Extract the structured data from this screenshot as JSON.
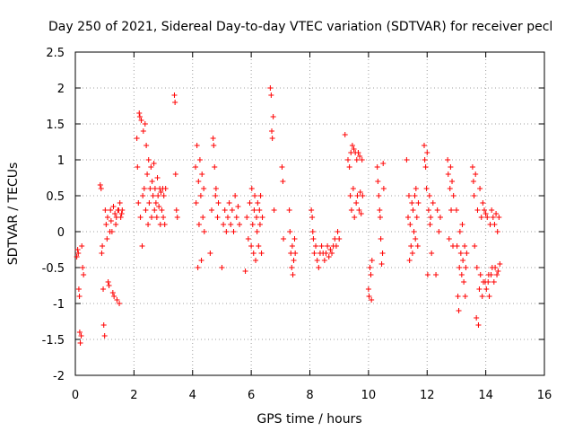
{
  "chart_data": {
    "type": "scatter",
    "title": "Day 250 of 2021, Sidereal Day-to-day VTEC variation (SDTVAR) for receiver pecl",
    "xlabel": "GPS time / hours",
    "ylabel": "SDTVAR / TECUs",
    "xlim": [
      0,
      16
    ],
    "ylim": [
      -2,
      2.5
    ],
    "xticks": [
      0,
      2,
      4,
      6,
      8,
      10,
      12,
      14,
      16
    ],
    "xtick_labels": [
      "0",
      "2",
      "4",
      "6",
      "8",
      "10",
      "12",
      "14",
      "16"
    ],
    "yticks": [
      -2,
      -1.5,
      -1,
      -0.5,
      0,
      0.5,
      1,
      1.5,
      2,
      2.5
    ],
    "ytick_labels": [
      "-2",
      "-1.5",
      "-1",
      "-0.5",
      "0",
      "0.5",
      "1",
      "1.5",
      "2",
      "2.5"
    ],
    "grid": true,
    "marker": "+",
    "marker_color": "#ff0000",
    "series": [
      {
        "name": "SDTVAR",
        "points": [
          [
            0.05,
            -0.35
          ],
          [
            0.08,
            -0.25
          ],
          [
            0.1,
            -0.3
          ],
          [
            0.12,
            -0.8
          ],
          [
            0.14,
            -0.9
          ],
          [
            0.15,
            -1.4
          ],
          [
            0.17,
            -1.55
          ],
          [
            0.2,
            -1.45
          ],
          [
            0.22,
            -0.2
          ],
          [
            0.25,
            -0.5
          ],
          [
            0.28,
            -0.6
          ],
          [
            0.85,
            0.65
          ],
          [
            0.88,
            0.6
          ],
          [
            0.9,
            -0.3
          ],
          [
            0.92,
            -0.2
          ],
          [
            0.95,
            -0.8
          ],
          [
            0.97,
            -1.3
          ],
          [
            1.0,
            -1.45
          ],
          [
            1.02,
            0.3
          ],
          [
            1.05,
            0.1
          ],
          [
            1.08,
            -0.1
          ],
          [
            1.1,
            0.2
          ],
          [
            1.12,
            -0.7
          ],
          [
            1.15,
            -0.75
          ],
          [
            1.18,
            0.0
          ],
          [
            1.2,
            0.3
          ],
          [
            1.22,
            0.15
          ],
          [
            1.25,
            0.0
          ],
          [
            1.28,
            -0.85
          ],
          [
            1.3,
            0.35
          ],
          [
            1.32,
            -0.9
          ],
          [
            1.35,
            0.25
          ],
          [
            1.38,
            0.1
          ],
          [
            1.4,
            0.2
          ],
          [
            1.42,
            -0.95
          ],
          [
            1.45,
            0.3
          ],
          [
            1.48,
            0.3
          ],
          [
            1.5,
            -1.0
          ],
          [
            1.52,
            0.4
          ],
          [
            1.55,
            0.2
          ],
          [
            1.58,
            0.25
          ],
          [
            1.6,
            0.3
          ],
          [
            2.1,
            1.3
          ],
          [
            2.12,
            0.9
          ],
          [
            2.15,
            0.4
          ],
          [
            2.18,
            1.65
          ],
          [
            2.2,
            1.6
          ],
          [
            2.22,
            0.2
          ],
          [
            2.25,
            1.55
          ],
          [
            2.28,
            -0.2
          ],
          [
            2.3,
            0.5
          ],
          [
            2.32,
            1.4
          ],
          [
            2.35,
            0.6
          ],
          [
            2.38,
            1.5
          ],
          [
            2.4,
            0.3
          ],
          [
            2.42,
            1.2
          ],
          [
            2.45,
            0.8
          ],
          [
            2.48,
            0.1
          ],
          [
            2.5,
            1.0
          ],
          [
            2.52,
            0.4
          ],
          [
            2.55,
            0.6
          ],
          [
            2.58,
            0.9
          ],
          [
            2.6,
            0.2
          ],
          [
            2.62,
            0.7
          ],
          [
            2.65,
            0.5
          ],
          [
            2.68,
            0.95
          ],
          [
            2.7,
            0.3
          ],
          [
            2.72,
            0.6
          ],
          [
            2.75,
            0.4
          ],
          [
            2.78,
            0.2
          ],
          [
            2.8,
            0.75
          ],
          [
            2.82,
            0.5
          ],
          [
            2.85,
            0.35
          ],
          [
            2.88,
            0.6
          ],
          [
            2.9,
            0.1
          ],
          [
            2.92,
            0.55
          ],
          [
            2.95,
            0.3
          ],
          [
            2.98,
            0.6
          ],
          [
            3.0,
            0.2
          ],
          [
            3.02,
            0.5
          ],
          [
            3.05,
            0.1
          ],
          [
            3.08,
            0.6
          ],
          [
            3.38,
            1.9
          ],
          [
            3.4,
            1.8
          ],
          [
            3.42,
            0.8
          ],
          [
            3.45,
            0.3
          ],
          [
            3.48,
            0.2
          ],
          [
            4.1,
            0.9
          ],
          [
            4.12,
            0.4
          ],
          [
            4.15,
            1.2
          ],
          [
            4.18,
            -0.5
          ],
          [
            4.2,
            0.7
          ],
          [
            4.22,
            0.1
          ],
          [
            4.25,
            1.0
          ],
          [
            4.28,
            0.5
          ],
          [
            4.3,
            -0.4
          ],
          [
            4.32,
            0.8
          ],
          [
            4.35,
            0.2
          ],
          [
            4.38,
            0.6
          ],
          [
            4.4,
            0.0
          ],
          [
            4.6,
            -0.3
          ],
          [
            4.65,
            0.3
          ],
          [
            4.7,
            1.3
          ],
          [
            4.72,
            1.2
          ],
          [
            4.75,
            0.9
          ],
          [
            4.78,
            0.5
          ],
          [
            4.8,
            0.6
          ],
          [
            4.85,
            0.2
          ],
          [
            4.88,
            0.4
          ],
          [
            5.0,
            -0.5
          ],
          [
            5.05,
            0.1
          ],
          [
            5.1,
            0.3
          ],
          [
            5.15,
            0.0
          ],
          [
            5.2,
            0.2
          ],
          [
            5.25,
            0.4
          ],
          [
            5.3,
            0.1
          ],
          [
            5.35,
            0.3
          ],
          [
            5.4,
            0.0
          ],
          [
            5.45,
            0.5
          ],
          [
            5.5,
            0.2
          ],
          [
            5.55,
            0.35
          ],
          [
            5.6,
            0.1
          ],
          [
            5.8,
            -0.55
          ],
          [
            5.85,
            0.2
          ],
          [
            5.9,
            -0.1
          ],
          [
            5.95,
            0.4
          ],
          [
            6.0,
            -0.2
          ],
          [
            6.02,
            0.6
          ],
          [
            6.05,
            0.1
          ],
          [
            6.08,
            -0.3
          ],
          [
            6.1,
            0.3
          ],
          [
            6.12,
            0.5
          ],
          [
            6.15,
            -0.4
          ],
          [
            6.18,
            0.2
          ],
          [
            6.2,
            0.0
          ],
          [
            6.22,
            0.4
          ],
          [
            6.25,
            -0.2
          ],
          [
            6.28,
            0.3
          ],
          [
            6.3,
            0.1
          ],
          [
            6.32,
            0.5
          ],
          [
            6.35,
            -0.3
          ],
          [
            6.38,
            0.2
          ],
          [
            6.65,
            2.0
          ],
          [
            6.68,
            1.9
          ],
          [
            6.7,
            1.4
          ],
          [
            6.72,
            1.3
          ],
          [
            6.75,
            1.6
          ],
          [
            6.78,
            0.3
          ],
          [
            7.05,
            0.9
          ],
          [
            7.08,
            0.7
          ],
          [
            7.1,
            -0.1
          ],
          [
            7.3,
            0.3
          ],
          [
            7.32,
            0.0
          ],
          [
            7.35,
            -0.3
          ],
          [
            7.38,
            -0.5
          ],
          [
            7.4,
            -0.2
          ],
          [
            7.42,
            -0.6
          ],
          [
            7.45,
            -0.4
          ],
          [
            7.48,
            -0.1
          ],
          [
            7.5,
            -0.3
          ],
          [
            8.05,
            0.3
          ],
          [
            8.08,
            0.2
          ],
          [
            8.1,
            0.0
          ],
          [
            8.12,
            -0.1
          ],
          [
            8.15,
            -0.3
          ],
          [
            8.2,
            -0.2
          ],
          [
            8.25,
            -0.4
          ],
          [
            8.3,
            -0.5
          ],
          [
            8.35,
            -0.3
          ],
          [
            8.4,
            -0.2
          ],
          [
            8.45,
            -0.3
          ],
          [
            8.5,
            -0.4
          ],
          [
            8.55,
            -0.3
          ],
          [
            8.6,
            -0.2
          ],
          [
            8.65,
            -0.35
          ],
          [
            8.7,
            -0.25
          ],
          [
            8.75,
            -0.3
          ],
          [
            8.8,
            -0.2
          ],
          [
            8.85,
            -0.1
          ],
          [
            8.9,
            -0.2
          ],
          [
            8.95,
            0.0
          ],
          [
            9.0,
            -0.1
          ],
          [
            9.2,
            1.35
          ],
          [
            9.3,
            1.0
          ],
          [
            9.35,
            0.9
          ],
          [
            9.38,
            0.5
          ],
          [
            9.4,
            1.1
          ],
          [
            9.42,
            0.3
          ],
          [
            9.45,
            1.2
          ],
          [
            9.48,
            0.6
          ],
          [
            9.5,
            1.15
          ],
          [
            9.52,
            0.2
          ],
          [
            9.55,
            1.1
          ],
          [
            9.58,
            0.4
          ],
          [
            9.6,
            1.0
          ],
          [
            9.62,
            0.5
          ],
          [
            9.65,
            1.1
          ],
          [
            9.68,
            0.3
          ],
          [
            9.7,
            1.05
          ],
          [
            9.72,
            0.55
          ],
          [
            9.75,
            0.25
          ],
          [
            9.78,
            1.0
          ],
          [
            9.8,
            0.5
          ],
          [
            10.0,
            -0.8
          ],
          [
            10.02,
            -0.9
          ],
          [
            10.05,
            -0.5
          ],
          [
            10.08,
            -0.6
          ],
          [
            10.1,
            -0.95
          ],
          [
            10.12,
            -0.4
          ],
          [
            10.3,
            0.9
          ],
          [
            10.32,
            0.7
          ],
          [
            10.35,
            0.5
          ],
          [
            10.38,
            0.3
          ],
          [
            10.4,
            0.2
          ],
          [
            10.42,
            -0.1
          ],
          [
            10.45,
            -0.45
          ],
          [
            10.48,
            -0.3
          ],
          [
            10.5,
            0.95
          ],
          [
            10.52,
            0.6
          ],
          [
            11.3,
            1.0
          ],
          [
            11.35,
            0.2
          ],
          [
            11.38,
            0.5
          ],
          [
            11.4,
            -0.4
          ],
          [
            11.42,
            0.1
          ],
          [
            11.45,
            -0.2
          ],
          [
            11.48,
            0.4
          ],
          [
            11.5,
            -0.3
          ],
          [
            11.52,
            0.3
          ],
          [
            11.55,
            0.0
          ],
          [
            11.58,
            0.5
          ],
          [
            11.6,
            -0.1
          ],
          [
            11.62,
            0.6
          ],
          [
            11.65,
            0.2
          ],
          [
            11.68,
            -0.2
          ],
          [
            11.7,
            0.4
          ],
          [
            11.9,
            1.2
          ],
          [
            11.92,
            1.0
          ],
          [
            11.95,
            0.9
          ],
          [
            11.98,
            0.6
          ],
          [
            12.0,
            1.1
          ],
          [
            12.02,
            -0.6
          ],
          [
            12.05,
            0.3
          ],
          [
            12.08,
            0.5
          ],
          [
            12.1,
            0.1
          ],
          [
            12.12,
            0.2
          ],
          [
            12.15,
            -0.3
          ],
          [
            12.2,
            0.4
          ],
          [
            12.3,
            -0.6
          ],
          [
            12.35,
            0.3
          ],
          [
            12.4,
            0.0
          ],
          [
            12.45,
            0.2
          ],
          [
            12.7,
            1.0
          ],
          [
            12.72,
            0.8
          ],
          [
            12.75,
            -0.1
          ],
          [
            12.78,
            0.6
          ],
          [
            12.8,
            0.9
          ],
          [
            12.82,
            0.3
          ],
          [
            12.85,
            0.7
          ],
          [
            12.88,
            -0.2
          ],
          [
            12.9,
            0.5
          ],
          [
            13.0,
            0.3
          ],
          [
            13.02,
            -0.2
          ],
          [
            13.05,
            -0.9
          ],
          [
            13.08,
            -1.1
          ],
          [
            13.1,
            -0.5
          ],
          [
            13.12,
            0.0
          ],
          [
            13.15,
            -0.3
          ],
          [
            13.18,
            -0.6
          ],
          [
            13.2,
            0.1
          ],
          [
            13.22,
            -0.4
          ],
          [
            13.25,
            -0.7
          ],
          [
            13.28,
            -0.2
          ],
          [
            13.3,
            -0.9
          ],
          [
            13.32,
            -0.5
          ],
          [
            13.35,
            -0.3
          ],
          [
            13.55,
            0.9
          ],
          [
            13.58,
            0.7
          ],
          [
            13.6,
            0.5
          ],
          [
            13.62,
            -0.2
          ],
          [
            13.65,
            0.8
          ],
          [
            13.68,
            -1.2
          ],
          [
            13.7,
            -0.5
          ],
          [
            13.72,
            0.3
          ],
          [
            13.75,
            -1.3
          ],
          [
            13.78,
            -0.8
          ],
          [
            13.8,
            0.6
          ],
          [
            13.82,
            -0.6
          ],
          [
            13.85,
            0.2
          ],
          [
            13.88,
            -0.9
          ],
          [
            13.9,
            0.4
          ],
          [
            13.92,
            -0.7
          ],
          [
            13.95,
            0.3
          ],
          [
            13.98,
            -0.7
          ],
          [
            14.0,
            0.25
          ],
          [
            14.02,
            -0.8
          ],
          [
            14.05,
            0.2
          ],
          [
            14.08,
            -0.7
          ],
          [
            14.1,
            -0.6
          ],
          [
            14.12,
            -0.9
          ],
          [
            14.15,
            0.1
          ],
          [
            14.18,
            -0.6
          ],
          [
            14.2,
            0.3
          ],
          [
            14.22,
            -0.5
          ],
          [
            14.25,
            0.2
          ],
          [
            14.28,
            -0.7
          ],
          [
            14.3,
            0.1
          ],
          [
            14.32,
            -0.5
          ],
          [
            14.35,
            0.25
          ],
          [
            14.38,
            -0.6
          ],
          [
            14.4,
            0.0
          ],
          [
            14.42,
            -0.55
          ],
          [
            14.45,
            0.2
          ],
          [
            14.48,
            -0.45
          ]
        ]
      }
    ]
  }
}
